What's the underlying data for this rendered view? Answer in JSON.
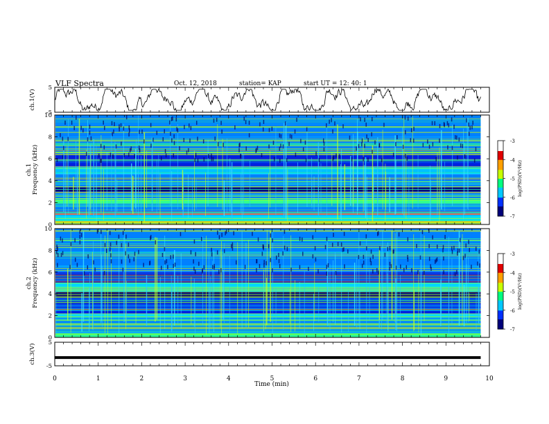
{
  "header": {
    "title": "VLF Spectra",
    "date": "Oct. 12, 2018",
    "station": "station= KAP",
    "start_ut": "start  UT =   12: 40: 1"
  },
  "colorbar": {
    "label": "log(PSD)(V²/Hz)",
    "ticks": [
      "-3",
      "-4",
      "-5",
      "-6",
      "-7"
    ],
    "colors": [
      "#00007a",
      "#0030ff",
      "#00c8ff",
      "#00ff80",
      "#c8ff00",
      "#ffa000",
      "#e00000",
      "#ffffff"
    ]
  },
  "chart_data": [
    {
      "type": "line",
      "ylabel": "ch.1(V)",
      "ylim": [
        -5,
        5
      ],
      "y_ticks": [
        "5",
        "-5"
      ],
      "xlim": [
        0,
        10
      ],
      "note": "waveform, roughly oscillating between -3 and 3 V over 0–9.8 min",
      "x_extent_max": 9.8
    },
    {
      "type": "heatmap",
      "ylabel": "ch.1\nFrequency  (kHz)",
      "ylim": [
        0,
        10
      ],
      "y_ticks": [
        "0",
        "2",
        "4",
        "6",
        "8",
        "10"
      ],
      "xlim": [
        0,
        10
      ],
      "z_label": "log(PSD)(V²/Hz)",
      "z_range": [
        -7,
        -3
      ],
      "bands": [
        {
          "f_from": 0.0,
          "f_to": 0.3,
          "level": -4.5
        },
        {
          "f_from": 0.3,
          "f_to": 0.9,
          "level": -5.2
        },
        {
          "f_from": 0.9,
          "f_to": 1.0,
          "level": -3.6
        },
        {
          "f_from": 1.0,
          "f_to": 1.9,
          "level": -5.9
        },
        {
          "f_from": 1.9,
          "f_to": 2.4,
          "level": -4.8
        },
        {
          "f_from": 2.4,
          "f_to": 3.0,
          "level": -5.6
        },
        {
          "f_from": 3.0,
          "f_to": 3.4,
          "level": -6.7
        },
        {
          "f_from": 3.4,
          "f_to": 4.6,
          "level": -5.6
        },
        {
          "f_from": 4.6,
          "f_to": 5.3,
          "level": -5.2
        },
        {
          "f_from": 5.3,
          "f_to": 6.4,
          "level": -6.4
        },
        {
          "f_from": 6.4,
          "f_to": 10.0,
          "level": -6.0
        }
      ]
    },
    {
      "type": "heatmap",
      "ylabel": "ch.2\nFrequency  (kHz)",
      "ylim": [
        0,
        10
      ],
      "y_ticks": [
        "0",
        "2",
        "4",
        "6",
        "8",
        "10"
      ],
      "xlim": [
        0,
        10
      ],
      "z_label": "log(PSD)(V²/Hz)",
      "z_range": [
        -7,
        -3
      ],
      "bands": [
        {
          "f_from": 0.0,
          "f_to": 0.4,
          "level": -4.8
        },
        {
          "f_from": 0.4,
          "f_to": 1.8,
          "level": -6.0
        },
        {
          "f_from": 1.8,
          "f_to": 2.2,
          "level": -5.2
        },
        {
          "f_from": 2.2,
          "f_to": 3.7,
          "level": -6.2
        },
        {
          "f_from": 3.7,
          "f_to": 4.2,
          "level": -6.8
        },
        {
          "f_from": 4.2,
          "f_to": 5.0,
          "level": -5.4
        },
        {
          "f_from": 5.0,
          "f_to": 6.0,
          "level": -6.4
        },
        {
          "f_from": 6.0,
          "f_to": 10.0,
          "level": -5.9
        }
      ]
    },
    {
      "type": "line",
      "ylabel": "ch.3(V)",
      "ylim": [
        -5,
        5
      ],
      "y_ticks": [
        "5",
        "-5"
      ],
      "xlim": [
        0,
        10
      ],
      "x_ticks": [
        "0",
        "1",
        "2",
        "3",
        "4",
        "5",
        "6",
        "7",
        "8",
        "9",
        "10"
      ],
      "xlabel": "Time  (min)",
      "constant_value": -1.5,
      "x_extent_max": 9.8
    }
  ]
}
